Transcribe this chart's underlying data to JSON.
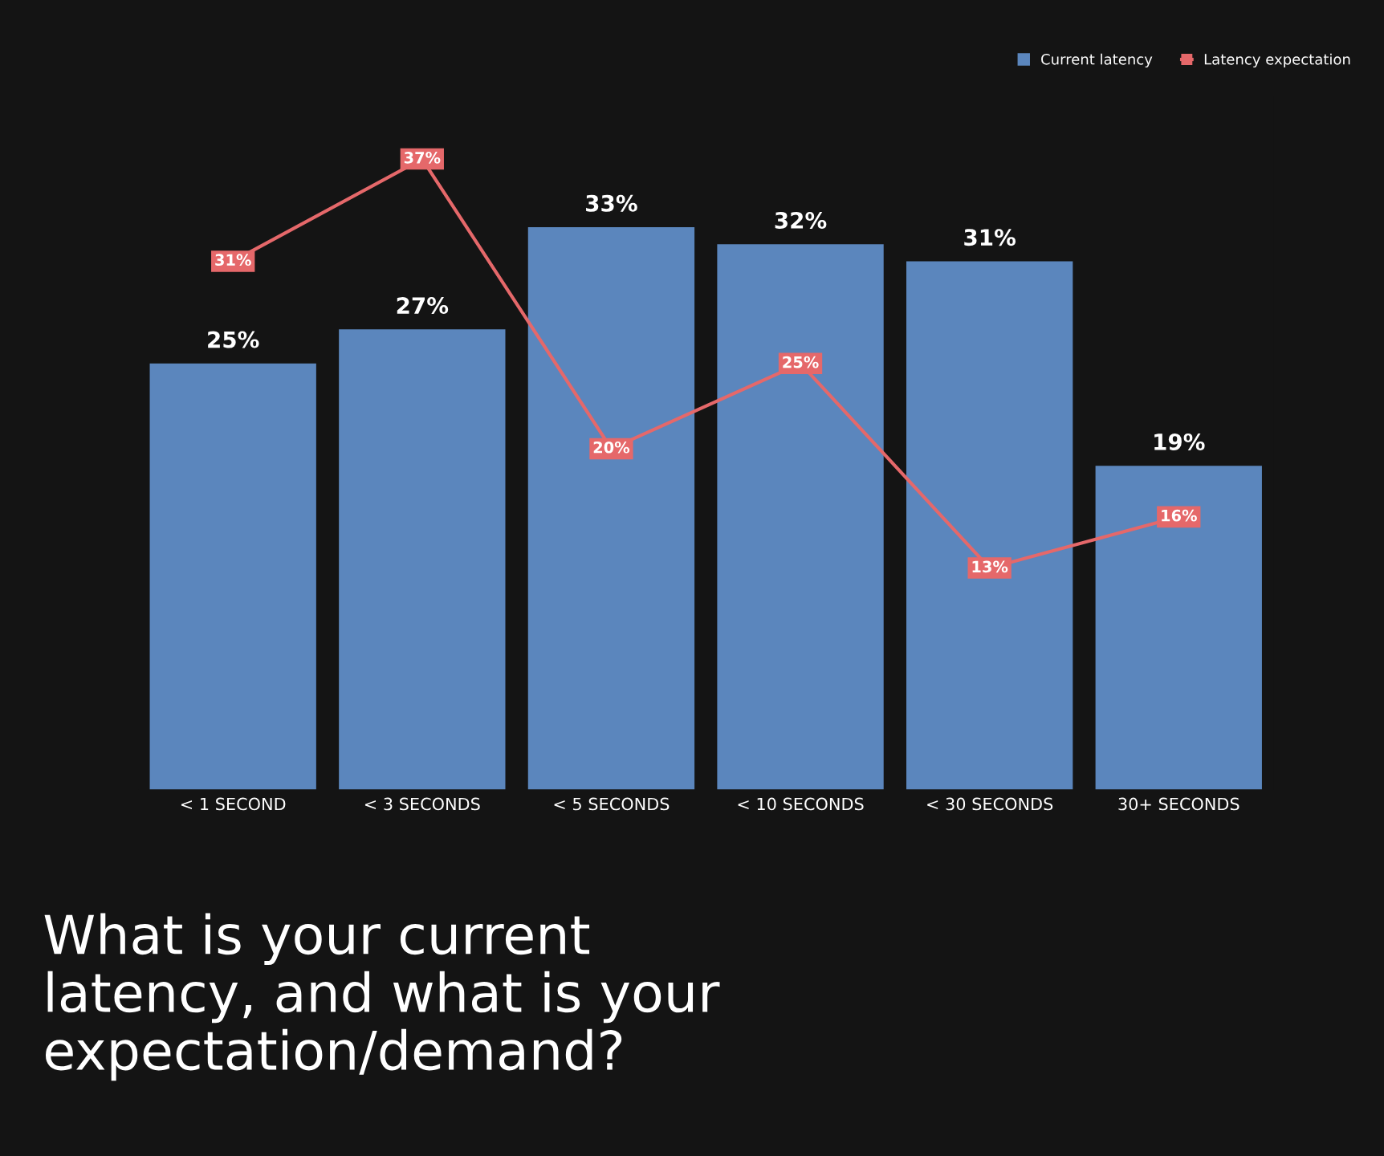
{
  "chart_data": {
    "type": "bar",
    "title": "What is your current latency, and what is your expectation/demand?",
    "categories": [
      "< 1 SECOND",
      "< 3 SECONDS",
      "< 5 SECONDS",
      "< 10 SECONDS",
      "< 30 SECONDS",
      "30+ SECONDS"
    ],
    "series": [
      {
        "name": "Current latency",
        "color": "#5b86bd",
        "values": [
          25,
          27,
          33,
          32,
          31,
          19
        ],
        "value_labels": [
          "25%",
          "27%",
          "33%",
          "32%",
          "31%",
          "19%"
        ]
      },
      {
        "name": "Latency expectation",
        "type": "line",
        "color": "#e5686a",
        "values": [
          31,
          37,
          20,
          25,
          13,
          16
        ],
        "value_labels": [
          "31%",
          "37%",
          "20%",
          "25%",
          "13%",
          "16%"
        ]
      }
    ],
    "legend": "top right",
    "grid": false,
    "marker": "square",
    "line_style": "solid"
  }
}
